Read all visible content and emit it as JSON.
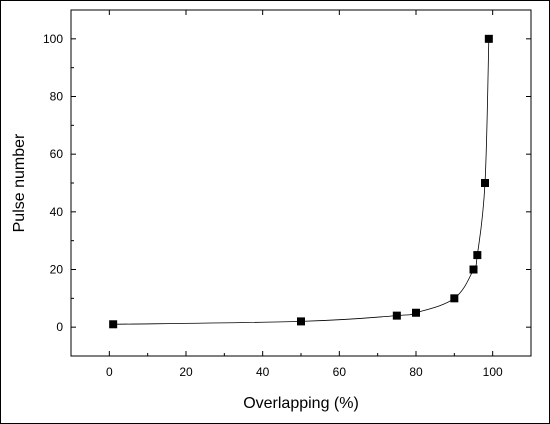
{
  "chart_data": {
    "type": "line",
    "title": "",
    "xlabel": "Overlapping (%)",
    "ylabel": "Pulse number",
    "xlim": [
      -10,
      110
    ],
    "ylim": [
      -10,
      110
    ],
    "xticks": [
      0,
      20,
      40,
      60,
      80,
      100
    ],
    "yticks": [
      0,
      20,
      40,
      60,
      80,
      100
    ],
    "grid": false,
    "legend": "none",
    "marker": "square",
    "colors": {
      "line": "#000000",
      "marker": "#000000"
    },
    "series": [
      {
        "x": [
          1,
          50,
          75,
          80,
          90,
          95,
          96,
          98,
          99
        ],
        "y": [
          1,
          2,
          4,
          5,
          10,
          20,
          25,
          50,
          100
        ]
      }
    ]
  }
}
